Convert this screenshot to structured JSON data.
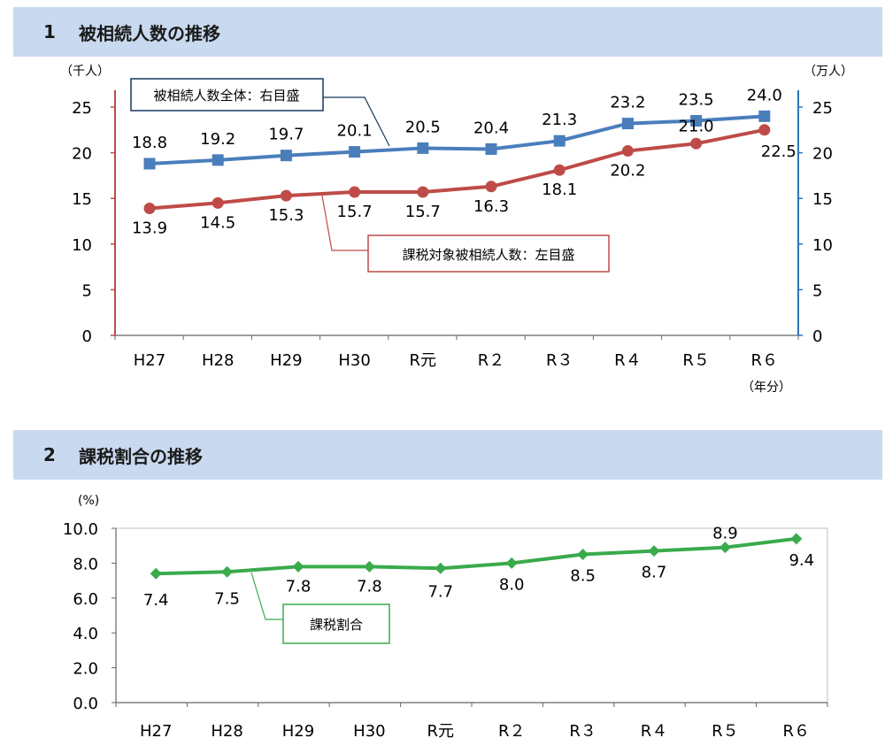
{
  "sections": [
    {
      "number": "1",
      "title": "被相続人数の推移"
    },
    {
      "number": "2",
      "title": "課税割合の推移"
    }
  ],
  "chart_data": [
    {
      "type": "line",
      "categories": [
        "H27",
        "H28",
        "H29",
        "H30",
        "R元",
        "R２",
        "R３",
        "R４",
        "R５",
        "R６"
      ],
      "series": [
        {
          "name": "被相続人数全体：右目盛",
          "axis": "right",
          "color": "#4a7ebb",
          "values": [
            18.8,
            19.2,
            19.7,
            20.1,
            20.5,
            20.4,
            21.3,
            23.2,
            23.5,
            24.0
          ],
          "labels": [
            "18.8",
            "19.2",
            "19.7",
            "20.1",
            "20.5",
            "20.4",
            "21.3",
            "23.2",
            "23.5",
            "24.0"
          ]
        },
        {
          "name": "課税対象被相続人数：左目盛",
          "axis": "left",
          "color": "#be4b48",
          "values": [
            13.9,
            14.5,
            15.3,
            15.7,
            15.7,
            16.3,
            18.1,
            20.2,
            21.0,
            22.5
          ],
          "labels": [
            "13.9",
            "14.5",
            "15.3",
            "15.7",
            "15.7",
            "16.3",
            "18.1",
            "20.2",
            "21.0",
            "22.5"
          ]
        }
      ],
      "left_axis": {
        "unit": "（千人）",
        "ticks": [
          "0",
          "5",
          "10",
          "15",
          "20",
          "25"
        ],
        "range": [
          0,
          25
        ],
        "color": "#be4b48"
      },
      "right_axis": {
        "unit": "（万人）",
        "ticks": [
          "0",
          "5",
          "10",
          "15",
          "20",
          "25"
        ],
        "range": [
          0,
          25
        ],
        "color": "#2e75b6"
      },
      "xlabel": "（年分）"
    },
    {
      "type": "line",
      "categories": [
        "H27",
        "H28",
        "H29",
        "H30",
        "R元",
        "R２",
        "R３",
        "R４",
        "R５",
        "R６"
      ],
      "series": [
        {
          "name": "課税割合",
          "color": "#3aaa4c",
          "values": [
            7.4,
            7.5,
            7.8,
            7.8,
            7.7,
            8.0,
            8.5,
            8.7,
            8.9,
            9.4
          ],
          "labels": [
            "7.4",
            "7.5",
            "7.8",
            "7.8",
            "7.7",
            "8.0",
            "8.5",
            "8.7",
            "8.9",
            "9.4"
          ]
        }
      ],
      "y_axis": {
        "unit": "(%)",
        "ticks": [
          "0.0",
          "2.0",
          "4.0",
          "6.0",
          "8.0",
          "10.0"
        ],
        "range": [
          0,
          10
        ]
      }
    }
  ]
}
